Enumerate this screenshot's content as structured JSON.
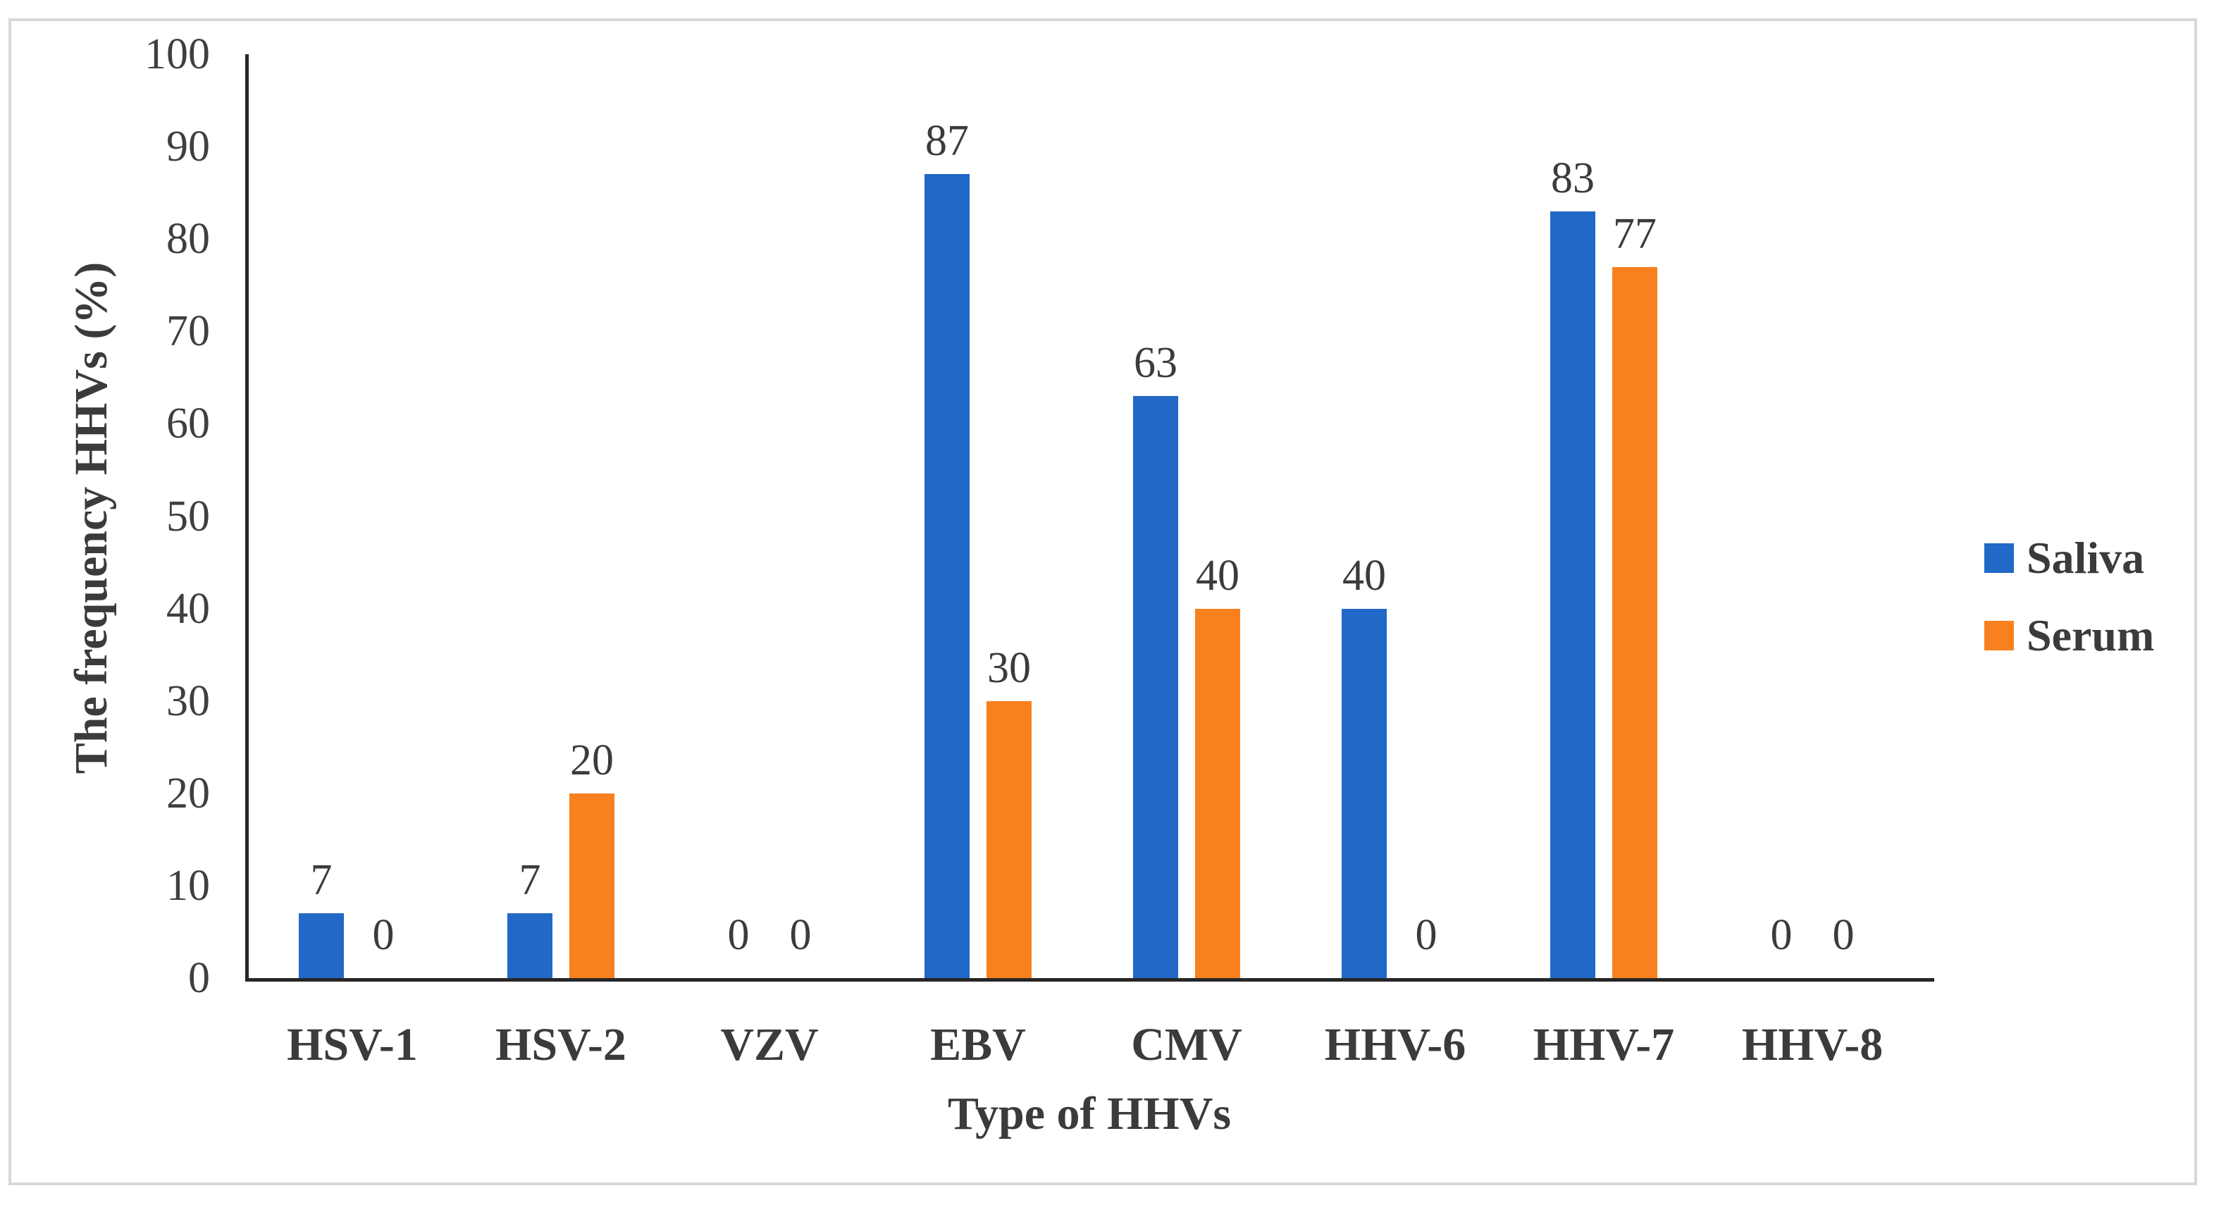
{
  "figure": {
    "background_color": "#ffffff",
    "border_color": "#d9d9d9",
    "axis_color": "#262626",
    "text_color": "#3b3b3b"
  },
  "chart_data": {
    "type": "bar",
    "title": "",
    "categories": [
      "HSV-1",
      "HSV-2",
      "VZV",
      "EBV",
      "CMV",
      "HHV-6",
      "HHV-7",
      "HHV-8"
    ],
    "series": [
      {
        "name": "Saliva",
        "color": "#2268C7",
        "values": [
          7,
          7,
          0,
          87,
          63,
          40,
          83,
          0
        ]
      },
      {
        "name": "Serum",
        "color": "#F8801F",
        "values": [
          0,
          20,
          0,
          30,
          40,
          0,
          77,
          0
        ]
      }
    ],
    "xlabel": "Type of HHVs",
    "ylabel": "The frequency HHVs (%)",
    "ylim": [
      0,
      100
    ],
    "yticks": [
      0,
      10,
      20,
      30,
      40,
      50,
      60,
      70,
      80,
      90,
      100
    ],
    "grid": false,
    "legend_position": "right",
    "data_labels": true
  }
}
